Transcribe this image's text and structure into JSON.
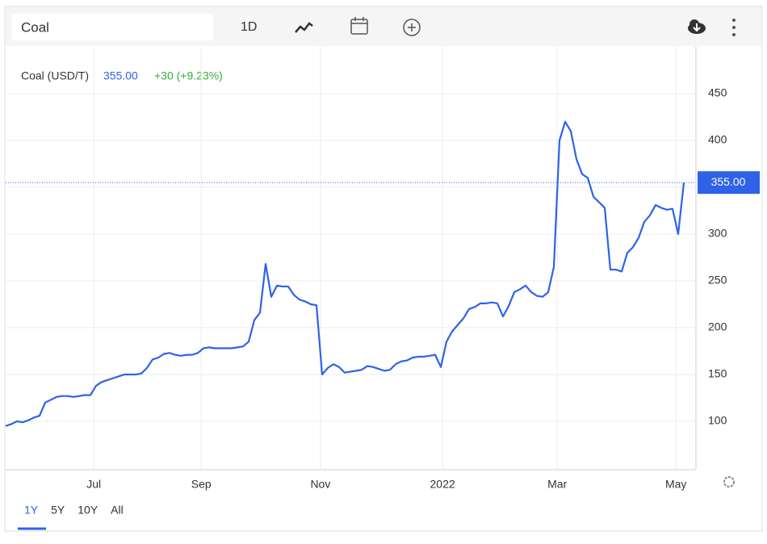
{
  "toolbar": {
    "search": "Coal",
    "interval": "1D"
  },
  "ranges": [
    "1Y",
    "5Y",
    "10Y",
    "All"
  ],
  "chart_data": {
    "type": "line",
    "series_label": "Coal (USD/T)",
    "price": {
      "value": 355,
      "label": "355.00"
    },
    "change": "+30 (+9.23%)",
    "color": "#2f62e9",
    "x": [
      0,
      1,
      2,
      3,
      4,
      5,
      6,
      7,
      8,
      9,
      10,
      11,
      12,
      13,
      14,
      15,
      16,
      17,
      18,
      19,
      20,
      21,
      22,
      23,
      24,
      25,
      26,
      27,
      28,
      29,
      30,
      31,
      32,
      33,
      34,
      35,
      36,
      37,
      38,
      39,
      40,
      41,
      42,
      43,
      44,
      45,
      46,
      47,
      48,
      49,
      50,
      51,
      52,
      53,
      54,
      55,
      56,
      57,
      58,
      59,
      60,
      61,
      62,
      63,
      64,
      65,
      66,
      67,
      68,
      69,
      70,
      71,
      72,
      73,
      74,
      75,
      76,
      77,
      78,
      79,
      80,
      81,
      82,
      83,
      84,
      85,
      86,
      87,
      88,
      89,
      90,
      91,
      92,
      93,
      94,
      95,
      96,
      97,
      98,
      99,
      100,
      101,
      102,
      103,
      104,
      105,
      106,
      107,
      108,
      109,
      110,
      111,
      112,
      113,
      114,
      115,
      116,
      117,
      118,
      119,
      120
    ],
    "values": [
      95,
      97,
      100,
      99,
      101,
      104,
      106,
      120,
      123,
      126,
      127,
      127,
      126,
      127,
      128,
      128,
      138,
      142,
      144,
      146,
      148,
      150,
      150,
      150,
      151,
      157,
      166,
      168,
      172,
      173,
      171,
      170,
      171,
      171,
      173,
      178,
      179,
      178,
      178,
      178,
      178,
      179,
      180,
      185,
      208,
      216,
      268,
      233,
      245,
      244,
      244,
      235,
      230,
      228,
      225,
      224,
      150,
      157,
      161,
      158,
      152,
      153,
      154,
      155,
      159,
      158,
      156,
      154,
      155,
      161,
      164,
      165,
      168,
      169,
      169,
      170,
      171,
      158,
      185,
      196,
      203,
      210,
      220,
      222,
      226,
      226,
      227,
      226,
      212,
      223,
      238,
      241,
      245,
      238,
      234,
      233,
      238,
      265,
      400,
      420,
      410,
      380,
      364,
      360,
      340,
      334,
      328,
      262,
      262,
      260,
      280,
      286,
      296,
      313,
      320,
      331,
      328,
      326,
      327,
      300,
      355
    ],
    "xlim": [
      0,
      120
    ],
    "xticks": [
      {
        "value": 15.6,
        "label": "Jul"
      },
      {
        "value": 34.6,
        "label": "Sep"
      },
      {
        "value": 55.7,
        "label": "Nov"
      },
      {
        "value": 77.3,
        "label": "2022"
      },
      {
        "value": 97.6,
        "label": "Mar"
      },
      {
        "value": 118.6,
        "label": "May"
      }
    ],
    "ylim": [
      50,
      500
    ],
    "yticks": [
      100,
      150,
      200,
      250,
      300,
      350,
      400,
      450
    ],
    "grid": true
  }
}
